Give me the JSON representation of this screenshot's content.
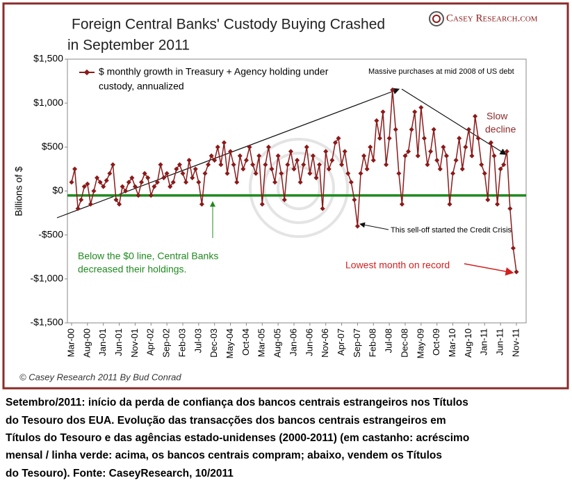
{
  "chart_data": {
    "type": "line",
    "title": [
      "Foreign Central Banks' Custody Buying Crashed",
      "in September 2011"
    ],
    "brand": "Casey Research.com",
    "credit": "© Casey Research 2011 By Bud Conrad",
    "y_label": "Billions of $",
    "ylim": [
      -1500,
      1500
    ],
    "yticks": [
      {
        "value": -1500,
        "label": "-$1,500"
      },
      {
        "value": -1000,
        "label": "-$1,000"
      },
      {
        "value": -500,
        "label": "-$500"
      },
      {
        "value": 0,
        "label": "$0"
      },
      {
        "value": 500,
        "label": "$500"
      },
      {
        "value": 1000,
        "label": "$1,000"
      },
      {
        "value": 1500,
        "label": "$1,500"
      }
    ],
    "reference_line": {
      "value": -50,
      "color": "#1f8a1f"
    },
    "categories": [
      "Mar-00",
      null,
      null,
      null,
      null,
      "Aug-00",
      null,
      null,
      null,
      null,
      "Jan-01",
      null,
      null,
      null,
      null,
      "Jun-01",
      null,
      null,
      null,
      null,
      "Nov-01",
      null,
      null,
      null,
      null,
      "Apr-02",
      null,
      null,
      null,
      null,
      "Sep-02",
      null,
      null,
      null,
      null,
      "Feb-03",
      null,
      null,
      null,
      null,
      "Jul-03",
      null,
      null,
      null,
      null,
      "Dec-03",
      null,
      null,
      null,
      null,
      "May-04",
      null,
      null,
      null,
      null,
      "Oct-04",
      null,
      null,
      null,
      null,
      "Mar-05",
      null,
      null,
      null,
      null,
      "Aug-05",
      null,
      null,
      null,
      null,
      "Jan-06",
      null,
      null,
      null,
      null,
      "Jun-06",
      null,
      null,
      null,
      null,
      "Nov-06",
      null,
      null,
      null,
      null,
      "Apr-07",
      null,
      null,
      null,
      null,
      "Sep-07",
      null,
      null,
      null,
      null,
      "Feb-08",
      null,
      null,
      null,
      null,
      "Jul-08",
      null,
      null,
      null,
      null,
      "Dec-08",
      null,
      null,
      null,
      null,
      "May-09",
      null,
      null,
      null,
      null,
      "Oct-09",
      null,
      null,
      null,
      null,
      "Mar-10",
      null,
      null,
      null,
      null,
      "Aug-10",
      null,
      null,
      null,
      null,
      "Jan-11",
      null,
      null,
      null,
      null,
      "Jun-11",
      null,
      null,
      null,
      null,
      "Nov-11"
    ],
    "series": [
      {
        "name": [
          "$ monthly growth in Treasury + Agency holding under",
          "custody, annualized"
        ],
        "color": "#8b1a1a",
        "values": [
          100,
          250,
          -200,
          -100,
          50,
          80,
          -150,
          0,
          150,
          100,
          50,
          120,
          200,
          300,
          -100,
          -150,
          50,
          0,
          100,
          150,
          50,
          -50,
          100,
          200,
          150,
          -50,
          50,
          100,
          300,
          150,
          200,
          50,
          100,
          250,
          300,
          200,
          100,
          350,
          150,
          250,
          100,
          -150,
          200,
          300,
          400,
          350,
          500,
          300,
          550,
          200,
          450,
          300,
          100,
          400,
          250,
          350,
          500,
          300,
          200,
          400,
          -150,
          300,
          500,
          250,
          100,
          400,
          200,
          -100,
          300,
          450,
          250,
          350,
          100,
          300,
          500,
          200,
          400,
          150,
          300,
          -200,
          450,
          250,
          350,
          550,
          600,
          300,
          450,
          200,
          100,
          -100,
          -400,
          200,
          400,
          250,
          500,
          350,
          800,
          600,
          900,
          300,
          600,
          1150,
          700,
          200,
          -150,
          400,
          450,
          700,
          900,
          400,
          950,
          600,
          300,
          450,
          700,
          350,
          250,
          500,
          400,
          -150,
          200,
          350,
          600,
          250,
          500,
          700,
          400,
          850,
          600,
          300,
          200,
          -100,
          550,
          400,
          -150,
          250,
          300,
          450,
          -200,
          -650,
          -920
        ]
      }
    ],
    "annotations": {
      "peak": "Massive purchases at mid 2008 of US debt",
      "decline": [
        "Slow",
        "decline"
      ],
      "selloff": "This sell-off started the Credit Crisis",
      "below": [
        "Below the $0 line, Central Banks",
        "decreased their holdings."
      ],
      "lowest": "Lowest month on record"
    }
  },
  "caption": [
    "Setembro/2011: início da perda de confiança dos  bancos centrais estrangeiros nos  Títulos",
    "do Tesouro  dos EUA.   Evolução das transacções dos bancos centrais  estrangeiros em",
    "Títulos do Tesouro e das agências  estado-unidenses (2000-2011) (em castanho: acréscimo",
    " mensal / linha verde: acima, os bancos centrais  compram; abaixo, vendem os Títulos",
    "do Tesouro).   Fonte: CaseyResearch, 10/2011"
  ]
}
